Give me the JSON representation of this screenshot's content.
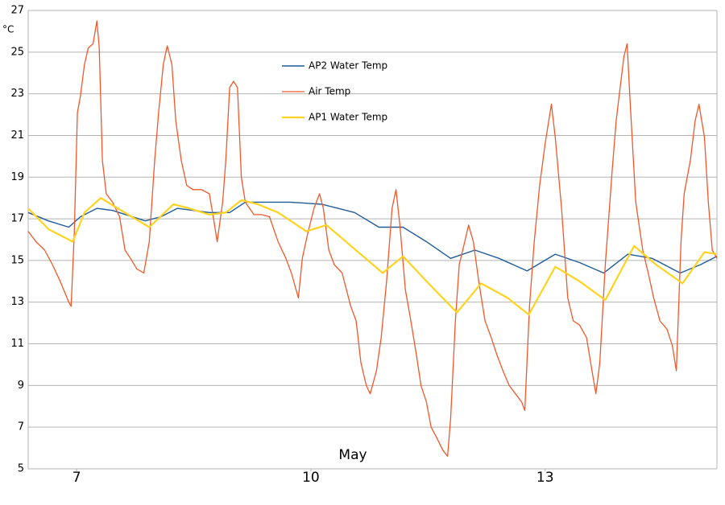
{
  "chart_data": {
    "type": "line",
    "y_label": "°C",
    "x_label": "May",
    "xlim": [
      6.38,
      15.2
    ],
    "xticks": [
      7,
      10,
      13
    ],
    "ylim": [
      5,
      27
    ],
    "yticks": [
      5,
      7,
      9,
      11,
      13,
      15,
      17,
      19,
      21,
      23,
      25,
      27
    ],
    "grid": true,
    "legend": "top",
    "series": [
      {
        "name": "AP2 Water Temp",
        "color": "#1f5c99",
        "x": [
          6.38,
          6.64,
          6.9,
          7.05,
          7.26,
          7.46,
          7.88,
          8.08,
          8.29,
          8.7,
          8.96,
          9.16,
          9.73,
          10.14,
          10.56,
          10.87,
          11.18,
          11.48,
          11.79,
          12.1,
          12.41,
          12.77,
          13.13,
          13.44,
          13.75,
          14.06,
          14.37,
          14.73,
          14.99,
          15.2
        ],
        "values": [
          17.3,
          16.9,
          16.6,
          17.1,
          17.5,
          17.4,
          16.9,
          17.1,
          17.5,
          17.3,
          17.3,
          17.8,
          17.8,
          17.7,
          17.3,
          16.6,
          16.6,
          15.9,
          15.1,
          15.5,
          15.1,
          14.5,
          15.3,
          14.9,
          14.4,
          15.3,
          15.1,
          14.4,
          14.8,
          15.2
        ]
      },
      {
        "name": "Air Temp",
        "color": "#f0582a",
        "x": [
          6.38,
          6.48,
          6.59,
          6.69,
          6.79,
          6.9,
          6.93,
          6.97,
          7.01,
          7.05,
          7.1,
          7.15,
          7.21,
          7.26,
          7.29,
          7.33,
          7.38,
          7.46,
          7.55,
          7.62,
          7.69,
          7.77,
          7.86,
          7.93,
          8.0,
          8.05,
          8.11,
          8.16,
          8.22,
          8.27,
          8.34,
          8.41,
          8.49,
          8.6,
          8.7,
          8.75,
          8.8,
          8.87,
          8.91,
          8.96,
          9.01,
          9.06,
          9.11,
          9.16,
          9.27,
          9.37,
          9.47,
          9.58,
          9.68,
          9.75,
          9.84,
          9.89,
          9.96,
          10.04,
          10.11,
          10.16,
          10.23,
          10.3,
          10.4,
          10.51,
          10.58,
          10.64,
          10.71,
          10.76,
          10.84,
          10.9,
          10.97,
          11.04,
          11.09,
          11.14,
          11.21,
          11.28,
          11.35,
          11.41,
          11.48,
          11.54,
          11.61,
          11.69,
          11.75,
          11.79,
          11.85,
          11.9,
          11.97,
          12.02,
          12.08,
          12.15,
          12.23,
          12.31,
          12.38,
          12.46,
          12.54,
          12.62,
          12.7,
          12.74,
          12.8,
          12.86,
          12.93,
          13.0,
          13.08,
          13.13,
          13.21,
          13.29,
          13.36,
          13.44,
          13.53,
          13.6,
          13.65,
          13.7,
          13.77,
          13.86,
          13.91,
          13.96,
          14.01,
          14.05,
          14.09,
          14.16,
          14.25,
          14.32,
          14.39,
          14.47,
          14.56,
          14.63,
          14.68,
          14.74,
          14.78,
          14.86,
          14.92,
          14.97,
          15.04,
          15.09,
          15.14,
          15.2
        ],
        "values": [
          16.4,
          15.9,
          15.5,
          14.8,
          14.0,
          13.0,
          12.8,
          16.3,
          22.1,
          22.9,
          24.4,
          25.2,
          25.4,
          26.5,
          25.2,
          19.8,
          18.2,
          17.8,
          17.1,
          15.5,
          15.1,
          14.6,
          14.4,
          15.9,
          19.8,
          22.1,
          24.4,
          25.3,
          24.4,
          21.7,
          19.8,
          18.6,
          18.4,
          18.4,
          18.2,
          17.1,
          15.9,
          17.8,
          19.8,
          23.3,
          23.6,
          23.3,
          19.0,
          17.8,
          17.2,
          17.2,
          17.1,
          15.9,
          15.1,
          14.4,
          13.2,
          15.1,
          16.3,
          17.5,
          18.2,
          17.5,
          15.5,
          14.8,
          14.4,
          12.8,
          12.1,
          10.1,
          9.0,
          8.6,
          9.7,
          11.3,
          14.0,
          17.5,
          18.4,
          16.7,
          13.6,
          12.1,
          10.5,
          9.0,
          8.2,
          7.0,
          6.5,
          5.9,
          5.6,
          7.4,
          12.1,
          14.8,
          15.9,
          16.7,
          15.9,
          14.0,
          12.1,
          11.3,
          10.5,
          9.7,
          9.0,
          8.6,
          8.2,
          7.8,
          12.8,
          15.9,
          18.6,
          20.6,
          22.5,
          20.9,
          17.5,
          13.2,
          12.1,
          11.9,
          11.3,
          9.7,
          8.6,
          10.1,
          14.8,
          19.4,
          21.7,
          23.3,
          24.8,
          25.4,
          22.5,
          17.8,
          15.5,
          14.4,
          13.2,
          12.1,
          11.7,
          10.9,
          9.7,
          15.9,
          18.2,
          19.8,
          21.7,
          22.5,
          20.9,
          17.8,
          15.5,
          15.1
        ]
      },
      {
        "name": "AP1 Water Temp",
        "color": "#ffd320",
        "x": [
          6.38,
          6.64,
          6.95,
          7.1,
          7.31,
          7.57,
          7.93,
          8.24,
          8.44,
          8.7,
          8.91,
          9.11,
          9.32,
          9.58,
          9.94,
          10.2,
          10.45,
          10.92,
          11.18,
          11.48,
          11.87,
          12.18,
          12.52,
          12.79,
          13.13,
          13.44,
          13.77,
          14.14,
          14.42,
          14.76,
          15.04,
          15.2
        ],
        "values": [
          17.5,
          16.5,
          15.9,
          17.3,
          18.0,
          17.4,
          16.6,
          17.7,
          17.5,
          17.2,
          17.3,
          17.9,
          17.7,
          17.3,
          16.4,
          16.7,
          15.9,
          14.4,
          15.2,
          14.0,
          12.5,
          13.9,
          13.2,
          12.4,
          14.7,
          14.0,
          13.1,
          15.7,
          14.8,
          13.9,
          15.4,
          15.3
        ]
      }
    ]
  }
}
